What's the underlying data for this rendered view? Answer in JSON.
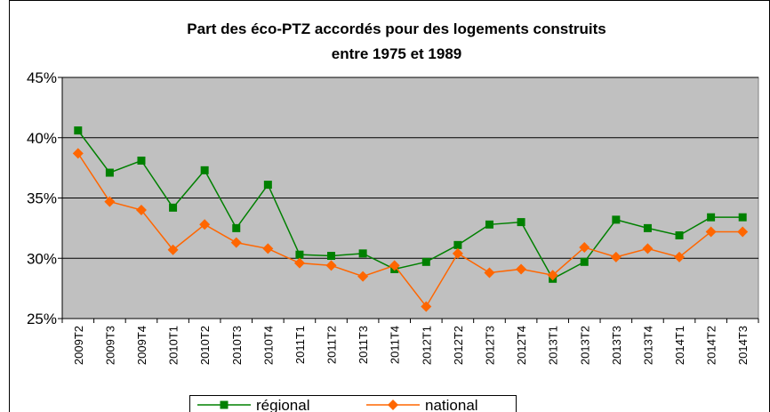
{
  "chart_data": {
    "type": "line",
    "title": [
      "Part des éco-PTZ accordés pour des logements construits",
      "entre 1975 et 1989"
    ],
    "categories": [
      "2009T2",
      "2009T3",
      "2009T4",
      "2010T1",
      "2010T2",
      "2010T3",
      "2010T4",
      "2011T1",
      "2011T2",
      "2011T3",
      "2011T4",
      "2012T1",
      "2012T2",
      "2012T3",
      "2012T4",
      "2013T1",
      "2013T2",
      "2013T3",
      "2013T4",
      "2014T1",
      "2014T2",
      "2014T3"
    ],
    "series": [
      {
        "name": "régional",
        "color": "#008000",
        "marker": "square",
        "values": [
          40.6,
          37.1,
          38.1,
          34.2,
          37.3,
          32.5,
          36.1,
          30.3,
          30.2,
          30.4,
          29.1,
          29.7,
          31.1,
          32.8,
          33.0,
          28.3,
          29.7,
          33.2,
          32.5,
          31.9,
          33.4,
          33.4
        ]
      },
      {
        "name": "national",
        "color": "#ff6600",
        "marker": "diamond",
        "values": [
          38.7,
          34.7,
          34.0,
          30.7,
          32.8,
          31.3,
          30.8,
          29.6,
          29.4,
          28.5,
          29.4,
          26.0,
          30.4,
          28.8,
          29.1,
          28.6,
          30.9,
          30.1,
          30.8,
          30.1,
          32.2,
          32.2
        ]
      }
    ],
    "ylim": [
      25,
      45
    ],
    "yticks": [
      {
        "value": 25,
        "label": "25%"
      },
      {
        "value": 30,
        "label": "30%"
      },
      {
        "value": 35,
        "label": "35%"
      },
      {
        "value": 40,
        "label": "40%"
      },
      {
        "value": 45,
        "label": "45%"
      }
    ],
    "grid": true,
    "legend": "bottom"
  }
}
